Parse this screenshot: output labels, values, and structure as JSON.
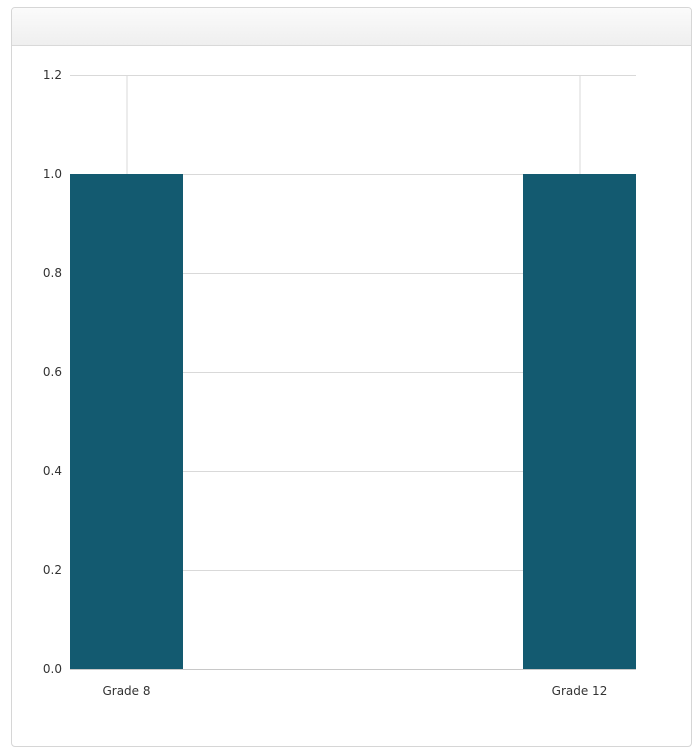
{
  "panel": {
    "title": ""
  },
  "chart_data": {
    "type": "bar",
    "categories": [
      "Grade 8",
      "Grade 12"
    ],
    "values": [
      1.0,
      1.0
    ],
    "ylim": [
      0,
      1.2
    ],
    "yticks": [
      "0.0",
      "0.2",
      "0.4",
      "0.6",
      "0.8",
      "1.0",
      "1.2"
    ],
    "title": "",
    "xlabel": "",
    "ylabel": "",
    "grid": "horizontal",
    "bar_color": "#135a70",
    "grid_color": "#d9d9d9"
  }
}
